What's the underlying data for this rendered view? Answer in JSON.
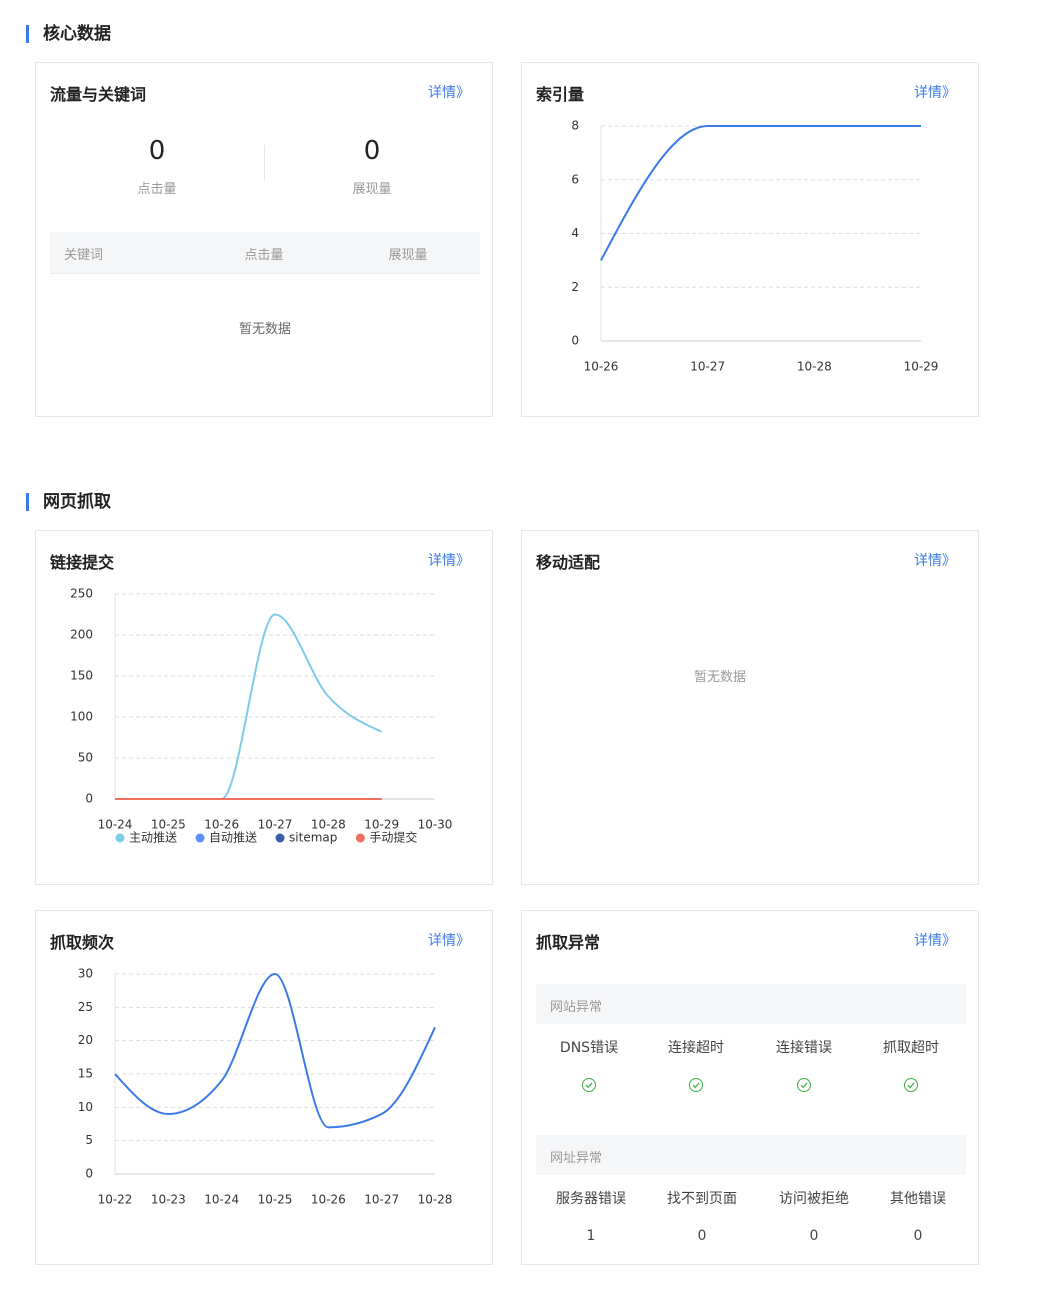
{
  "sections": [
    {
      "title": "核心数据"
    },
    {
      "title": "网页抓取"
    }
  ],
  "traffic": {
    "title": "流量与关键词",
    "more": "详情》",
    "stats": [
      {
        "value": 0,
        "label": "点击量"
      },
      {
        "value": 0,
        "label": "展现量"
      }
    ],
    "table": {
      "columns": [
        "关键词",
        "点击量",
        "展现量"
      ],
      "empty": "暂无数据"
    }
  },
  "chart_data": [
    {
      "type": "line",
      "title": "索引量",
      "more": "详情》",
      "categories": [
        "10-26",
        "10-27",
        "10-28",
        "10-29"
      ],
      "series": [
        {
          "name": "索引量",
          "color": "#3b7be8",
          "values": [
            3,
            8,
            8,
            8
          ]
        }
      ],
      "ylim": [
        0,
        8
      ],
      "yticks": [
        0,
        2,
        4,
        6,
        8
      ],
      "grid": true
    },
    {
      "type": "line",
      "title": "链接提交",
      "more": "详情》",
      "categories": [
        "10-24",
        "10-25",
        "10-26",
        "10-27",
        "10-28",
        "10-29",
        "10-30"
      ],
      "series": [
        {
          "name": "主动推送",
          "color": "#7ecbea",
          "values": [
            0,
            0,
            0,
            225,
            125,
            82,
            null
          ]
        },
        {
          "name": "自动推送",
          "color": "#5b8ff9",
          "values": [
            0,
            0,
            0,
            0,
            0,
            0,
            null
          ]
        },
        {
          "name": "sitemap",
          "color": "#3a5ea8",
          "values": [
            0,
            0,
            0,
            0,
            0,
            0,
            null
          ]
        },
        {
          "name": "手动提交",
          "color": "#f06f5f",
          "values": [
            0,
            0,
            0,
            0,
            0,
            0,
            null
          ]
        }
      ],
      "ylim": [
        0,
        250
      ],
      "yticks": [
        0,
        50,
        100,
        150,
        200,
        250
      ],
      "grid": true,
      "legend": "bottom"
    },
    {
      "type": "line",
      "title": "抓取频次",
      "more": "详情》",
      "categories": [
        "10-22",
        "10-23",
        "10-24",
        "10-25",
        "10-26",
        "10-27",
        "10-28"
      ],
      "series": [
        {
          "name": "抓取频次",
          "color": "#3b7be8",
          "values": [
            15,
            9,
            14,
            30,
            7,
            9,
            22
          ]
        }
      ],
      "ylim": [
        0,
        30
      ],
      "yticks": [
        0,
        5,
        10,
        15,
        20,
        25,
        30
      ],
      "grid": true
    }
  ],
  "mobile": {
    "title": "移动适配",
    "more": "详情》",
    "empty": "暂无数据"
  },
  "errors": {
    "title": "抓取异常",
    "more": "详情》",
    "groups": [
      {
        "name": "网站异常",
        "items": [
          "DNS错误",
          "连接超时",
          "连接错误",
          "抓取超时"
        ]
      },
      {
        "name": "网址异常",
        "items": [
          {
            "label": "服务器错误",
            "value": 1
          },
          {
            "label": "找不到页面",
            "value": 0
          },
          {
            "label": "访问被拒绝",
            "value": 0
          },
          {
            "label": "其他错误",
            "value": 0
          }
        ]
      }
    ]
  }
}
